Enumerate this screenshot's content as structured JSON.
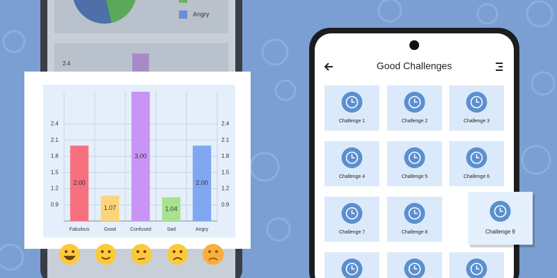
{
  "background_phone": {
    "legend_label": "Angry",
    "ytick": "2.4"
  },
  "chart_data": {
    "type": "bar",
    "categories": [
      "Fabulous",
      "Good",
      "Confused",
      "Sad",
      "Angry"
    ],
    "values": [
      2,
      1.07,
      3,
      1.04,
      2
    ],
    "value_labels": [
      "2.00",
      "1.07",
      "3.00",
      "1.04",
      "2.00"
    ],
    "colors": [
      "#f7707f",
      "#fdd47c",
      "#c894f5",
      "#a9e28e",
      "#7fa7f2"
    ],
    "ylim": [
      0.6,
      3.0
    ],
    "yticks": [
      0.9,
      1.2,
      1.5,
      1.8,
      2.1,
      2.4
    ],
    "grid": true
  },
  "phone": {
    "title": "Good Challenges",
    "challenges": [
      "Challenge 1",
      "Challenge 2",
      "Challenge 3",
      "Challenge 4",
      "Challenge 5",
      "Challenge 6",
      "Challenge 7",
      "Challenge 8",
      "Challenge 9"
    ]
  }
}
